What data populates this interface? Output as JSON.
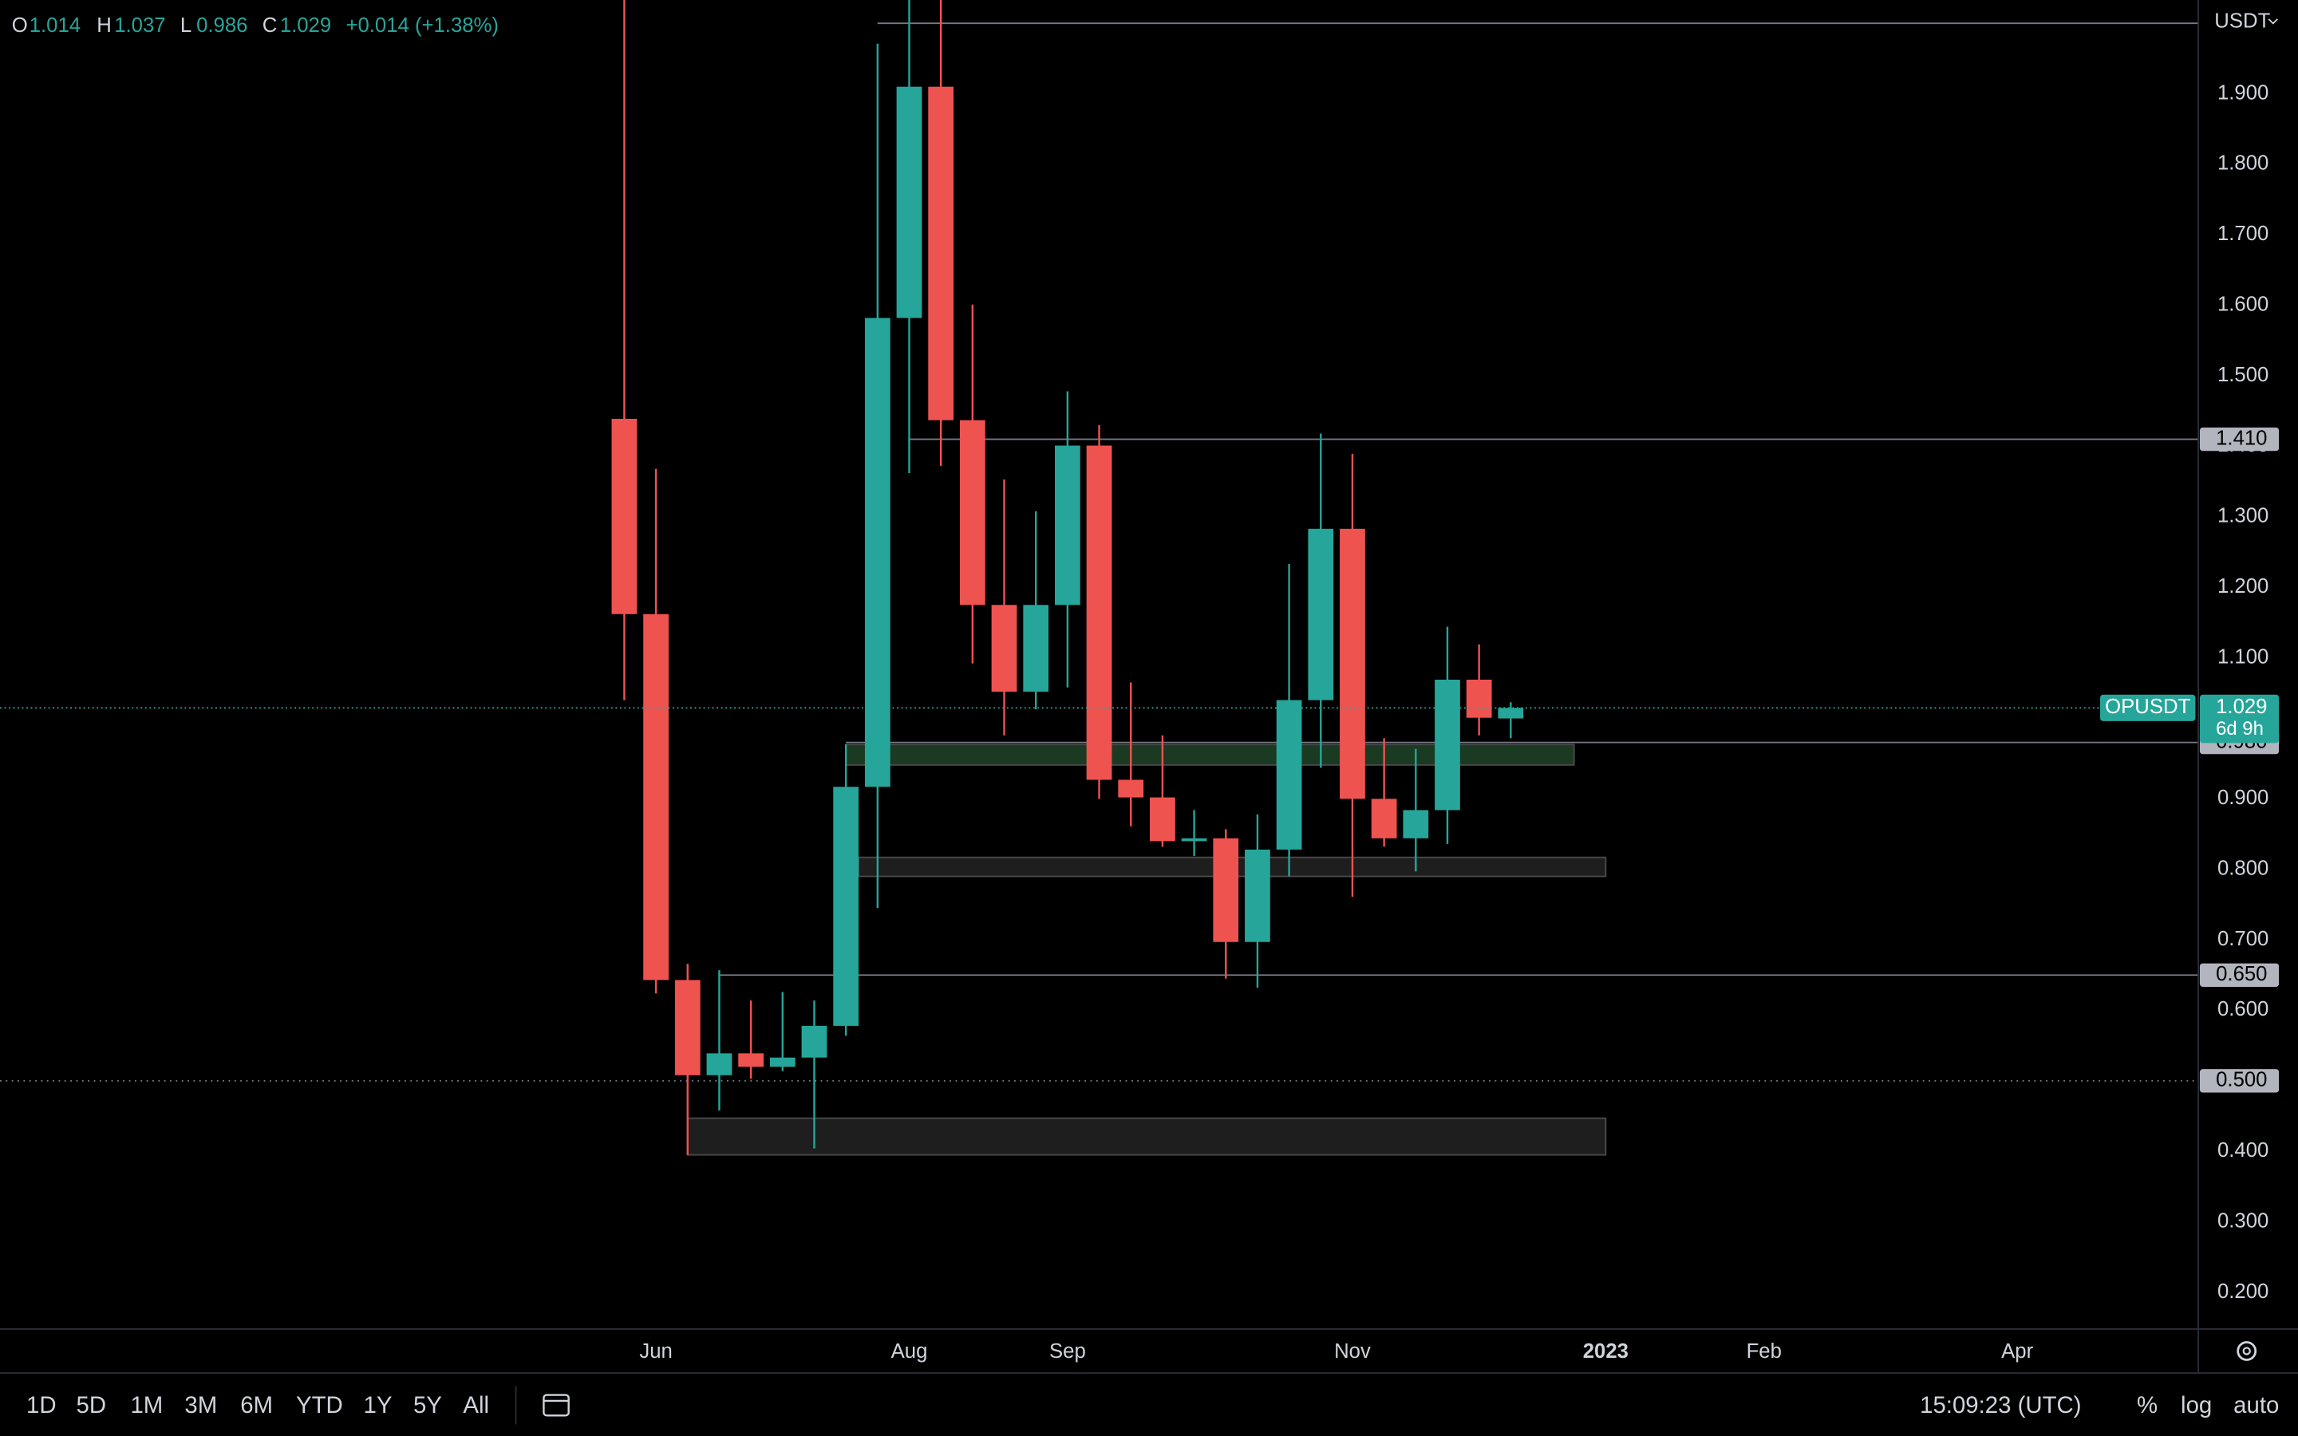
{
  "chart_data": {
    "type": "candlestick",
    "symbol": "OPUSDT",
    "currency": "USDT",
    "countdown": "6d 9h",
    "change": "+0.014 (+1.38%)",
    "ohlc_labels": [
      "O",
      "H",
      "L",
      "C"
    ],
    "x": [
      0,
      1,
      2,
      3,
      4,
      5,
      6,
      7,
      8,
      9,
      10,
      11,
      12,
      13,
      14,
      15,
      16,
      17,
      18,
      19,
      20,
      21,
      22,
      23,
      24,
      25,
      26,
      27,
      28
    ],
    "open": [
      1.439,
      1.162,
      0.643,
      0.508,
      0.539,
      0.52,
      0.533,
      0.578,
      0.917,
      1.582,
      1.91,
      1.437,
      1.175,
      1.052,
      1.175,
      1.401,
      0.927,
      0.902,
      0.84,
      0.844,
      0.697,
      0.828,
      1.04,
      1.283,
      0.9,
      0.844,
      0.884,
      1.069,
      1.014
    ],
    "high": [
      2.1,
      1.368,
      0.666,
      0.657,
      0.614,
      0.626,
      0.614,
      0.977,
      1.971,
      2.05,
      2.1,
      1.601,
      1.353,
      1.308,
      1.478,
      1.43,
      1.065,
      0.99,
      0.884,
      0.857,
      0.878,
      1.233,
      1.418,
      1.389,
      0.986,
      0.971,
      1.144,
      1.119,
      1.037
    ],
    "low": [
      1.04,
      0.624,
      0.395,
      0.458,
      0.503,
      0.514,
      0.404,
      0.564,
      0.745,
      1.362,
      1.372,
      1.092,
      0.99,
      1.027,
      1.058,
      0.9,
      0.861,
      0.832,
      0.819,
      0.645,
      0.632,
      0.79,
      0.944,
      0.761,
      0.832,
      0.797,
      0.836,
      0.99,
      0.986
    ],
    "close": [
      1.162,
      0.643,
      0.508,
      0.539,
      0.52,
      0.533,
      0.578,
      0.917,
      1.582,
      1.91,
      1.437,
      1.175,
      1.052,
      1.175,
      1.401,
      0.927,
      0.902,
      0.84,
      0.844,
      0.697,
      0.828,
      1.04,
      1.283,
      0.9,
      0.844,
      0.884,
      1.069,
      1.015,
      1.029
    ],
    "up_color": "#26a69a",
    "down_color": "#ef5350",
    "xlim": [
      -19.72,
      49.72
    ],
    "xticks": [
      {
        "value": 1,
        "label": "Jun"
      },
      {
        "value": 9,
        "label": "Aug"
      },
      {
        "value": 14,
        "label": "Sep"
      },
      {
        "value": 23,
        "label": "Nov"
      },
      {
        "value": 31,
        "label": "2023"
      },
      {
        "value": 36,
        "label": "Feb"
      },
      {
        "value": 44,
        "label": "Apr"
      }
    ],
    "ylim": [
      0.148,
      2.033
    ],
    "yticks": [
      {
        "value": 0.2,
        "label": "0.200"
      },
      {
        "value": 0.3,
        "label": "0.300"
      },
      {
        "value": 0.4,
        "label": "0.400"
      },
      {
        "value": 0.5,
        "label": "0.500"
      },
      {
        "value": 0.6,
        "label": "0.600"
      },
      {
        "value": 0.7,
        "label": "0.700"
      },
      {
        "value": 0.8,
        "label": "0.800"
      },
      {
        "value": 0.9,
        "label": "0.900"
      },
      {
        "value": 1.0,
        "label": "1.000"
      },
      {
        "value": 1.1,
        "label": "1.100"
      },
      {
        "value": 1.2,
        "label": "1.200"
      },
      {
        "value": 1.3,
        "label": "1.300"
      },
      {
        "value": 1.4,
        "label": "1.400"
      },
      {
        "value": 1.5,
        "label": "1.500"
      },
      {
        "value": 1.6,
        "label": "1.600"
      },
      {
        "value": 1.7,
        "label": "1.700"
      },
      {
        "value": 1.8,
        "label": "1.800"
      },
      {
        "value": 1.9,
        "label": "1.900"
      }
    ],
    "levels": [
      {
        "value": 2.0,
        "x0": 8
      },
      {
        "value": 1.41,
        "label": "1.410",
        "x0": 9
      },
      {
        "value": 0.98,
        "label": "0.980",
        "x0": 7
      },
      {
        "value": 0.65,
        "label": "0.650",
        "x0": 3
      },
      {
        "value": 0.5,
        "label": "0.500",
        "style": "dotted"
      }
    ],
    "zones": [
      {
        "x0": 7,
        "x1": 30,
        "y0": 0.948,
        "y1": 0.977,
        "color": "#1b3a22"
      },
      {
        "x0": 7.4,
        "x1": 31,
        "y0": 0.79,
        "y1": 0.817,
        "color": "#1e1e1e"
      },
      {
        "x0": 2,
        "x1": 31,
        "y0": 0.395,
        "y1": 0.447,
        "color": "#1e1e1e"
      }
    ],
    "intervals": [
      "1D",
      "5D",
      "1M",
      "3M",
      "6M",
      "YTD",
      "1Y",
      "5Y",
      "All"
    ],
    "clock": "15:09:23 (UTC)",
    "scale_buttons": [
      "%",
      "log",
      "auto"
    ]
  }
}
